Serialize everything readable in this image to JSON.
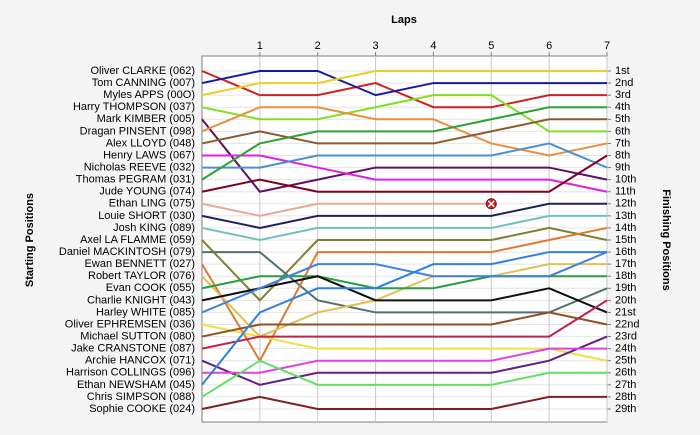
{
  "chart_data": {
    "type": "line",
    "x_label": "Laps",
    "y_label": "Starting Positions",
    "y2_label": "Finishing Positions",
    "x": [
      0,
      1,
      2,
      3,
      4,
      5,
      6,
      7
    ],
    "xlim": [
      0,
      7
    ],
    "xticks": [
      1,
      2,
      3,
      4,
      5,
      6,
      7
    ],
    "ylim": [
      1,
      29
    ],
    "inverted_y": true,
    "grid": true,
    "yticks": [
      {
        "value": 1,
        "label": "1st"
      },
      {
        "value": 2,
        "label": "2nd"
      },
      {
        "value": 3,
        "label": "3rd"
      },
      {
        "value": 4,
        "label": "4th"
      },
      {
        "value": 5,
        "label": "5th"
      },
      {
        "value": 6,
        "label": "6th"
      },
      {
        "value": 7,
        "label": "7th"
      },
      {
        "value": 8,
        "label": "8th"
      },
      {
        "value": 9,
        "label": "9th"
      },
      {
        "value": 10,
        "label": "10th"
      },
      {
        "value": 11,
        "label": "11th"
      },
      {
        "value": 12,
        "label": "12th"
      },
      {
        "value": 13,
        "label": "13th"
      },
      {
        "value": 14,
        "label": "14th"
      },
      {
        "value": 15,
        "label": "15th"
      },
      {
        "value": 16,
        "label": "16th"
      },
      {
        "value": 17,
        "label": "17th"
      },
      {
        "value": 18,
        "label": "18th"
      },
      {
        "value": 19,
        "label": "19th"
      },
      {
        "value": 20,
        "label": "20th"
      },
      {
        "value": 21,
        "label": "21st"
      },
      {
        "value": 22,
        "label": "22nd"
      },
      {
        "value": 23,
        "label": "23rd"
      },
      {
        "value": 24,
        "label": "24th"
      },
      {
        "value": 25,
        "label": "25th"
      },
      {
        "value": 26,
        "label": "26th"
      },
      {
        "value": 27,
        "label": "27th"
      },
      {
        "value": 28,
        "label": "28th"
      },
      {
        "value": 29,
        "label": "29th"
      }
    ],
    "series": [
      {
        "name": "Oliver CLARKE (062)",
        "color": "#d02020",
        "values": [
          1,
          3,
          3,
          2,
          4,
          4,
          3,
          3
        ]
      },
      {
        "name": "Tom CANNING (007)",
        "color": "#1a1aa0",
        "values": [
          2,
          1,
          1,
          3,
          2,
          2,
          2,
          2
        ]
      },
      {
        "name": "Myles APPS (00O)",
        "color": "#e8d020",
        "values": [
          3,
          2,
          2,
          1,
          1,
          1,
          1,
          1
        ]
      },
      {
        "name": "Harry  THOMPSON (037)",
        "color": "#80e020",
        "values": [
          4,
          5,
          5,
          4,
          3,
          3,
          6,
          6
        ]
      },
      {
        "name": "Mark KIMBER (005)",
        "color": "#601060",
        "values": [
          5,
          11,
          10,
          9,
          9,
          9,
          9,
          10
        ]
      },
      {
        "name": "Dragan PINSENT (098)",
        "color": "#e89040",
        "values": [
          6,
          4,
          4,
          5,
          5,
          7,
          8,
          7
        ]
      },
      {
        "name": "Alex LLOYD (048)",
        "color": "#8b5a2b",
        "values": [
          7,
          6,
          7,
          7,
          7,
          6,
          5,
          5
        ]
      },
      {
        "name": "Henry LAWS (067)",
        "color": "#e020e0",
        "values": [
          8,
          8,
          9,
          10,
          10,
          10,
          10,
          11
        ]
      },
      {
        "name": "Nicholas REEVE (032)",
        "color": "#4a90d0",
        "values": [
          9,
          9,
          8,
          8,
          8,
          8,
          7,
          9
        ]
      },
      {
        "name": "Thomas PEGRAM (031)",
        "color": "#30a030",
        "values": [
          10,
          7,
          6,
          6,
          6,
          5,
          4,
          4
        ]
      },
      {
        "name": "Jude YOUNG (074)",
        "color": "#800020",
        "values": [
          11,
          10,
          11,
          11,
          11,
          11,
          11,
          8
        ]
      },
      {
        "name": "Ethan LING (075)",
        "color": "#e8a898",
        "values": [
          12,
          13,
          12,
          12,
          12,
          12,
          null,
          null
        ]
      },
      {
        "name": "Louie SHORT (030)",
        "color": "#202060",
        "values": [
          13,
          14,
          13,
          13,
          13,
          13,
          12,
          12
        ]
      },
      {
        "name": "Josh KING (089)",
        "color": "#70c0c0",
        "values": [
          14,
          15,
          14,
          14,
          14,
          14,
          13,
          13
        ]
      },
      {
        "name": "Axel LA FLAMME (059)",
        "color": "#808030",
        "values": [
          15,
          20,
          15,
          15,
          15,
          15,
          14,
          15
        ]
      },
      {
        "name": "Daniel MACKINTOSH (079)",
        "color": "#507070",
        "values": [
          16,
          16,
          20,
          21,
          21,
          21,
          21,
          19
        ]
      },
      {
        "name": "Ewan BENNETT (027)",
        "color": "#e07830",
        "values": [
          17,
          25,
          16,
          16,
          16,
          16,
          15,
          14
        ]
      },
      {
        "name": "Robert TAYLOR (076)",
        "color": "#e0c050",
        "values": [
          18,
          23,
          21,
          20,
          18,
          18,
          17,
          17
        ]
      },
      {
        "name": "Evan COOK (055)",
        "color": "#20a040",
        "values": [
          19,
          18,
          18,
          19,
          19,
          18,
          18,
          18
        ]
      },
      {
        "name": "Charlie KNIGHT (043)",
        "color": "#101010",
        "values": [
          20,
          19,
          18,
          20,
          20,
          20,
          19,
          21
        ]
      },
      {
        "name": "Harley WHITE (085)",
        "color": "#4080e0",
        "values": [
          21,
          19,
          17,
          17,
          18,
          18,
          18,
          16
        ]
      },
      {
        "name": "Oliver EPHREMSEN (036)",
        "color": "#f0e040",
        "values": [
          22,
          23,
          24,
          24,
          24,
          24,
          24,
          25
        ]
      },
      {
        "name": "Michael SUTTON (080)",
        "color": "#905020",
        "values": [
          23,
          22,
          22,
          22,
          22,
          22,
          21,
          22
        ]
      },
      {
        "name": "Jake CRANSTONE (087)",
        "color": "#c02050",
        "values": [
          24,
          23,
          23,
          23,
          23,
          23,
          23,
          20
        ]
      },
      {
        "name": "Archie HANCOX (071)",
        "color": "#602080",
        "values": [
          25,
          27,
          26,
          26,
          26,
          26,
          25,
          23
        ]
      },
      {
        "name": "Harrison COLLINGS (096)",
        "color": "#e040e0",
        "values": [
          26,
          26,
          25,
          25,
          25,
          25,
          24,
          24
        ]
      },
      {
        "name": "Ethan NEWSHAM (045)",
        "color": "#3080e0",
        "values": [
          27,
          21,
          19,
          19,
          17,
          17,
          16,
          16
        ]
      },
      {
        "name": "Chris SIMPSON (088)",
        "color": "#60e060",
        "values": [
          28,
          25,
          27,
          27,
          27,
          27,
          26,
          26
        ]
      },
      {
        "name": "Sophie COOKE (024)",
        "color": "#802020",
        "values": [
          29,
          28,
          29,
          29,
          29,
          29,
          28,
          28
        ]
      }
    ]
  }
}
